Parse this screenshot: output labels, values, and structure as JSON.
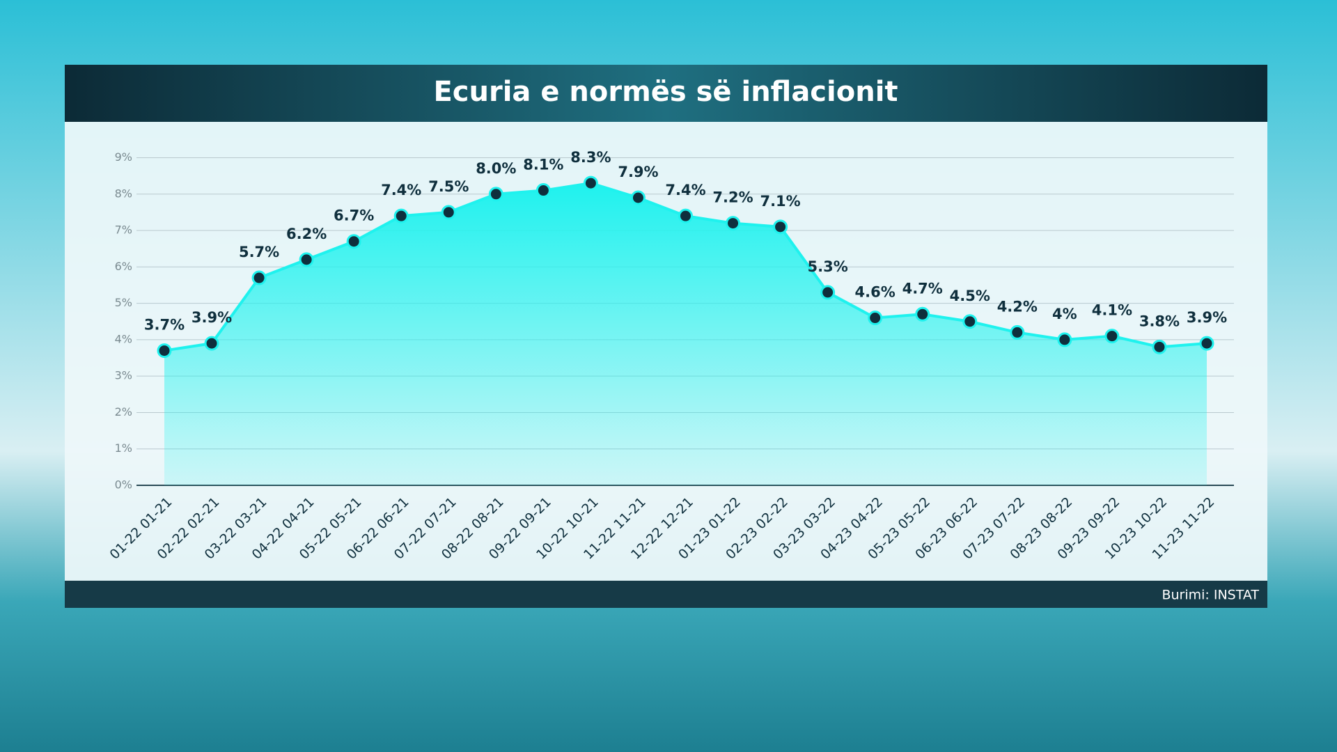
{
  "chart_data": {
    "type": "area",
    "title": "Ecuria e normës së inflacionit",
    "source": "Burimi: INSTAT",
    "categories": [
      "01-22 01-21",
      "02-22 02-21",
      "03-22 03-21",
      "04-22 04-21",
      "05-22 05-21",
      "06-22 06-21",
      "07-22 07-21",
      "08-22 08-21",
      "09-22 09-21",
      "10-22 10-21",
      "11-22 11-21",
      "12-22 12-21",
      "01-23 01-22",
      "02-23 02-22",
      "03-23 03-22",
      "04-23 04-22",
      "05-23 05-22",
      "06-23 06-22",
      "07-23 07-22",
      "08-23 08-22",
      "09-23 09-22",
      "10-23 10-22",
      "11-23 11-22"
    ],
    "values": [
      3.7,
      3.9,
      5.7,
      6.2,
      6.7,
      7.4,
      7.5,
      8.0,
      8.1,
      8.3,
      7.9,
      7.4,
      7.2,
      7.1,
      5.3,
      4.6,
      4.7,
      4.5,
      4.2,
      4,
      4.1,
      3.8,
      3.9
    ],
    "value_labels": [
      "3.7%",
      "3.9%",
      "5.7%",
      "6.2%",
      "6.7%",
      "7.4%",
      "7.5%",
      "8.0%",
      "8.1%",
      "8.3%",
      "7.9%",
      "7.4%",
      "7.2%",
      "7.1%",
      "5.3%",
      "4.6%",
      "4.7%",
      "4.5%",
      "4.2%",
      "4%",
      "4.1%",
      "3.8%",
      "3.9%"
    ],
    "color": "#1ff2ee",
    "ylim": [
      0,
      9
    ],
    "yticks": [
      {
        "value": 0,
        "label": "0%"
      },
      {
        "value": 1,
        "label": "1%"
      },
      {
        "value": 2,
        "label": "2%"
      },
      {
        "value": 3,
        "label": "3%"
      },
      {
        "value": 4,
        "label": "4%"
      },
      {
        "value": 5,
        "label": "5%"
      },
      {
        "value": 6,
        "label": "6%"
      },
      {
        "value": 7,
        "label": "7%"
      },
      {
        "value": 8,
        "label": "8%"
      },
      {
        "value": 9,
        "label": "9%"
      }
    ],
    "grid": true
  }
}
